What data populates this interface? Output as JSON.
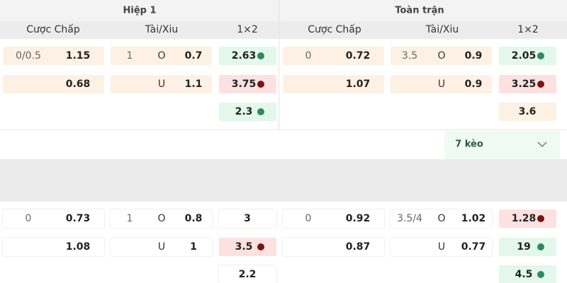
{
  "header": {
    "half": "Hiệp 1",
    "full": "Toàn trận"
  },
  "columns": {
    "half": [
      "Cược Chấp",
      "Tài/Xiu",
      "1×2"
    ],
    "full": [
      "Cược Chấp",
      "Tài/Xiu",
      "1×2"
    ]
  },
  "matches": [
    {
      "half": [
        {
          "handicap": {
            "line": "0/0.5",
            "odds": "1.15"
          },
          "total": {
            "line": "1",
            "side": "O",
            "odds": "0.7"
          },
          "x12": "2.63"
        },
        {
          "handicap": {
            "odds": "0.68"
          },
          "total": {
            "side": "U",
            "odds": "1.1"
          },
          "x12": "3.75"
        },
        {
          "x12": "2.3"
        }
      ],
      "full": [
        {
          "handicap": {
            "line": "0",
            "odds": "0.72"
          },
          "total": {
            "line": "3.5",
            "side": "O",
            "odds": "0.9"
          },
          "x12": "2.05"
        },
        {
          "handicap": {
            "odds": "1.07"
          },
          "total": {
            "side": "U",
            "odds": "0.9"
          },
          "x12": "3.25"
        },
        {
          "x12": "3.6"
        }
      ],
      "more": "7 kèo"
    },
    {
      "half": [
        {
          "handicap": {
            "line": "0",
            "odds": "0.73"
          },
          "total": {
            "line": "1",
            "side": "O",
            "odds": "0.8"
          },
          "x12": "3"
        },
        {
          "handicap": {
            "odds": "1.08"
          },
          "total": {
            "side": "U",
            "odds": "1"
          },
          "x12": "3.5"
        },
        {
          "x12": "2.2"
        }
      ],
      "full": [
        {
          "handicap": {
            "line": "0",
            "odds": "0.92"
          },
          "total": {
            "line": "3.5/4",
            "side": "O",
            "odds": "1.02"
          },
          "x12": "1.28"
        },
        {
          "handicap": {
            "odds": "0.87"
          },
          "total": {
            "side": "U",
            "odds": "0.77"
          },
          "x12": "19"
        },
        {
          "x12": "4.5"
        }
      ]
    }
  ]
}
